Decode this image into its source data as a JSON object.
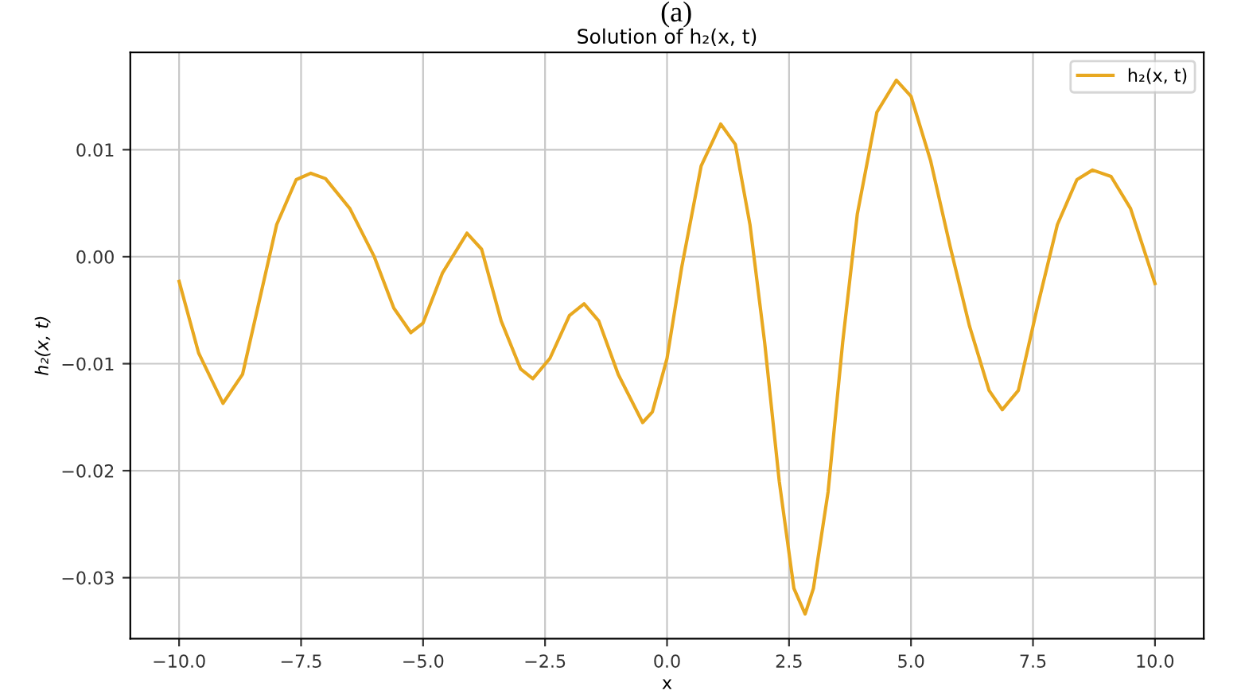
{
  "chart_data": {
    "type": "line",
    "title": "Solution of h₂(x, t)",
    "xlabel": "x",
    "ylabel": "h₂(x, t)",
    "annotations": [
      "(a)"
    ],
    "xlim": [
      -11,
      11
    ],
    "xticks": [
      {
        "value": -10,
        "label": "−10.0"
      },
      {
        "value": -7.5,
        "label": "−7.5"
      },
      {
        "value": -5,
        "label": "−5.0"
      },
      {
        "value": -2.5,
        "label": "−2.5"
      },
      {
        "value": 0,
        "label": "0.0"
      },
      {
        "value": 2.5,
        "label": "2.5"
      },
      {
        "value": 5,
        "label": "5.0"
      },
      {
        "value": 7.5,
        "label": "7.5"
      },
      {
        "value": 10,
        "label": "10.0"
      }
    ],
    "ylim": [
      -0.0357,
      0.0191
    ],
    "yticks": [
      {
        "value": -0.03,
        "label": "−0.03"
      },
      {
        "value": -0.02,
        "label": "−0.02"
      },
      {
        "value": -0.01,
        "label": "−0.01"
      },
      {
        "value": 0,
        "label": "0.00"
      },
      {
        "value": 0.01,
        "label": "0.01"
      }
    ],
    "grid": true,
    "legend": "top right",
    "marker": "none",
    "line_style": "solid",
    "series": [
      {
        "name": "h₂(x, t)",
        "color": "#e8a820",
        "x": [
          -10,
          -9.6,
          -9.1,
          -8.7,
          -8.3,
          -8.0,
          -7.6,
          -7.3,
          -7.0,
          -6.5,
          -6.0,
          -5.6,
          -5.25,
          -5.0,
          -4.6,
          -4.1,
          -3.8,
          -3.4,
          -3.0,
          -2.75,
          -2.4,
          -2.0,
          -1.7,
          -1.4,
          -1.0,
          -0.5,
          -0.3,
          0.0,
          0.3,
          0.7,
          1.1,
          1.4,
          1.7,
          2.0,
          2.3,
          2.6,
          2.83,
          3.0,
          3.3,
          3.6,
          3.9,
          4.3,
          4.7,
          5.0,
          5.4,
          5.8,
          6.2,
          6.6,
          6.87,
          7.2,
          7.6,
          8.0,
          8.4,
          8.72,
          9.1,
          9.5,
          10.0
        ],
        "values": [
          -0.0023,
          -0.009,
          -0.0137,
          -0.011,
          -0.003,
          0.003,
          0.0072,
          0.0078,
          0.0073,
          0.0045,
          0.0,
          -0.0048,
          -0.0071,
          -0.0062,
          -0.0015,
          0.0022,
          0.0007,
          -0.006,
          -0.0105,
          -0.0114,
          -0.0095,
          -0.0055,
          -0.0044,
          -0.006,
          -0.011,
          -0.0155,
          -0.0145,
          -0.0095,
          -0.001,
          0.0085,
          0.0124,
          0.0105,
          0.003,
          -0.008,
          -0.021,
          -0.031,
          -0.0334,
          -0.031,
          -0.022,
          -0.008,
          0.004,
          0.0135,
          0.0165,
          0.015,
          0.009,
          0.001,
          -0.0065,
          -0.0125,
          -0.0143,
          -0.0125,
          -0.0045,
          0.003,
          0.0072,
          0.0081,
          0.0075,
          0.0045,
          -0.0025
        ]
      }
    ]
  }
}
